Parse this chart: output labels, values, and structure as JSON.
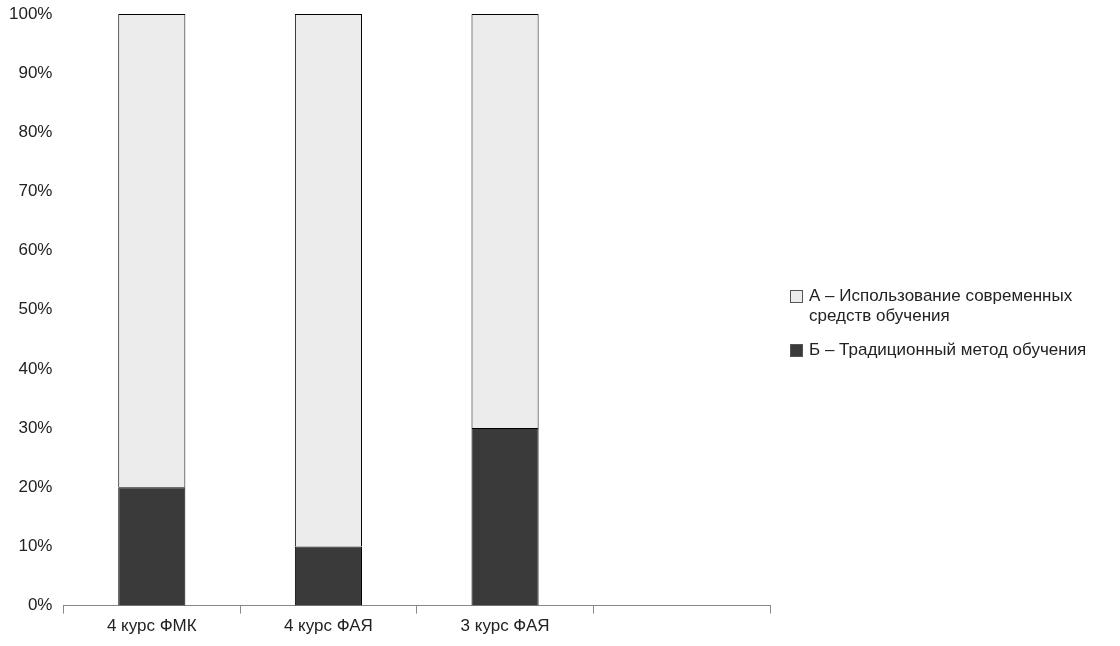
{
  "chart_data": {
    "type": "bar",
    "stacked": true,
    "categories": [
      "4 курс ФМК",
      "4 курс ФАЯ",
      "3 курс ФАЯ",
      null
    ],
    "series": [
      {
        "name": "Б – Традиционный метод обучения",
        "color": "#3a3a3a",
        "values": [
          20,
          10,
          30,
          null
        ]
      },
      {
        "name": "А  – Использование современных средств обучения",
        "color": "#ececec",
        "values": [
          80,
          90,
          70,
          null
        ]
      }
    ],
    "ylim": [
      0,
      100
    ],
    "yticks": [
      {
        "value": 0,
        "label": "0%"
      },
      {
        "value": 10,
        "label": "10%"
      },
      {
        "value": 20,
        "label": "20%"
      },
      {
        "value": 30,
        "label": "30%"
      },
      {
        "value": 40,
        "label": "40%"
      },
      {
        "value": 50,
        "label": "50%"
      },
      {
        "value": 60,
        "label": "60%"
      },
      {
        "value": 70,
        "label": "70%"
      },
      {
        "value": 80,
        "label": "80%"
      },
      {
        "value": 90,
        "label": "90%"
      },
      {
        "value": 100,
        "label": "100%"
      }
    ],
    "legend": "right"
  }
}
